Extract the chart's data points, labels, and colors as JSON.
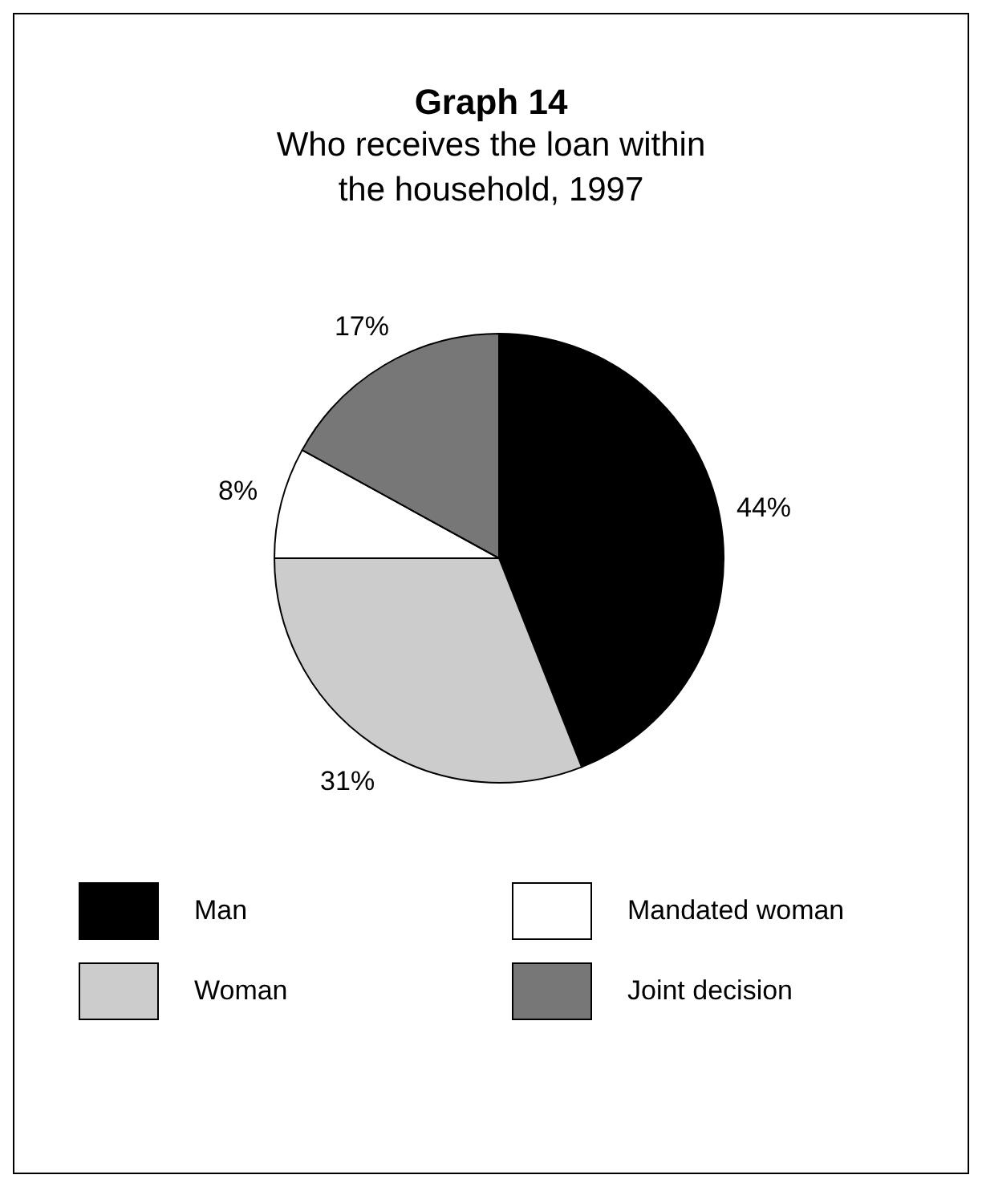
{
  "chart_data": {
    "type": "pie",
    "title": "Graph 14",
    "subtitle": "Who receives the loan within the household, 1997",
    "categories": [
      "Man",
      "Woman",
      "Mandated woman",
      "Joint decision"
    ],
    "values": [
      44,
      31,
      8,
      17
    ],
    "colors": [
      "#000000",
      "#cccccc",
      "#ffffff",
      "#777777"
    ],
    "value_labels": [
      "44%",
      "31%",
      "8%",
      "17%"
    ],
    "legend": "bottom"
  }
}
